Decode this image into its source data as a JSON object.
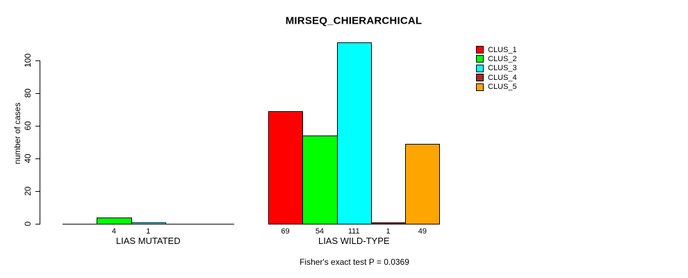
{
  "chart_data": {
    "type": "bar",
    "title": "MIRSEQ_CHIERARCHICAL",
    "ylabel": "number of cases",
    "caption": "Fisher's exact test P = 0.0369",
    "ylim": [
      0,
      113
    ],
    "yticks": [
      0,
      20,
      40,
      60,
      80,
      100
    ],
    "grid": false,
    "legend_position": "top-right",
    "categories": [
      "CLUS_1",
      "CLUS_2",
      "CLUS_3",
      "CLUS_4",
      "CLUS_5"
    ],
    "groups": [
      {
        "label": "LIAS MUTATED",
        "values": [
          0,
          4,
          1,
          0,
          0
        ]
      },
      {
        "label": "LIAS WILD-TYPE",
        "values": [
          69,
          54,
          111,
          1,
          49
        ]
      }
    ],
    "legend": [
      {
        "label": "CLUS_1",
        "color": "#FF0000"
      },
      {
        "label": "CLUS_2",
        "color": "#00FF00"
      },
      {
        "label": "CLUS_3",
        "color": "#00FFFF"
      },
      {
        "label": "CLUS_4",
        "color": "#A52A2A"
      },
      {
        "label": "CLUS_5",
        "color": "#FFA500"
      }
    ]
  },
  "colors": {
    "background": "#FFFFFF",
    "axis": "#000000",
    "text": "#000000"
  }
}
